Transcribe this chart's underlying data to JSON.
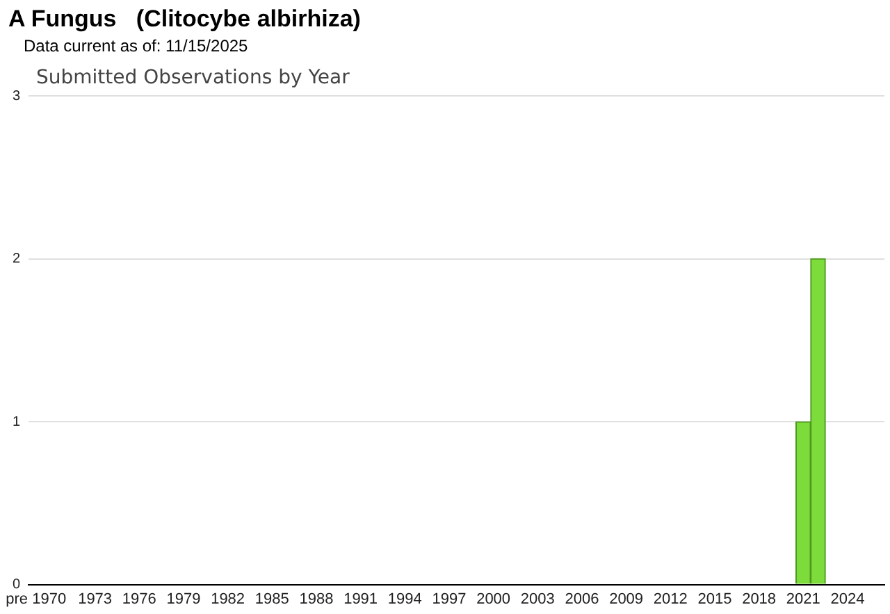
{
  "chart_data": {
    "type": "bar",
    "title": "A Fungus   (Clitocybe albirhiza)",
    "subtitle": "Data current as of: 11/15/2025",
    "annotations": [
      "Submitted Observations by Year"
    ],
    "categories": [
      "pre 1970",
      null,
      null,
      null,
      "1973",
      null,
      null,
      "1976",
      null,
      null,
      "1979",
      null,
      null,
      "1982",
      null,
      null,
      "1985",
      null,
      null,
      "1988",
      null,
      null,
      "1991",
      null,
      null,
      "1994",
      null,
      null,
      "1997",
      null,
      null,
      "2000",
      null,
      null,
      "2003",
      null,
      null,
      "2006",
      null,
      null,
      "2009",
      null,
      null,
      "2012",
      null,
      null,
      "2015",
      null,
      null,
      "2018",
      null,
      null,
      "2021",
      null,
      null,
      "2024",
      null,
      null
    ],
    "values": [
      0,
      0,
      0,
      0,
      0,
      0,
      0,
      0,
      0,
      0,
      0,
      0,
      0,
      0,
      0,
      0,
      0,
      0,
      0,
      0,
      0,
      0,
      0,
      0,
      0,
      0,
      0,
      0,
      0,
      0,
      0,
      0,
      0,
      0,
      0,
      0,
      0,
      0,
      0,
      0,
      0,
      0,
      0,
      0,
      0,
      0,
      0,
      0,
      0,
      0,
      0,
      0,
      1,
      2,
      0,
      0,
      0,
      0
    ],
    "color": "#7ddc3c",
    "ylim": [
      0,
      3
    ],
    "yticks": [
      0,
      1,
      2,
      3
    ],
    "grid": "y",
    "legend": false
  }
}
